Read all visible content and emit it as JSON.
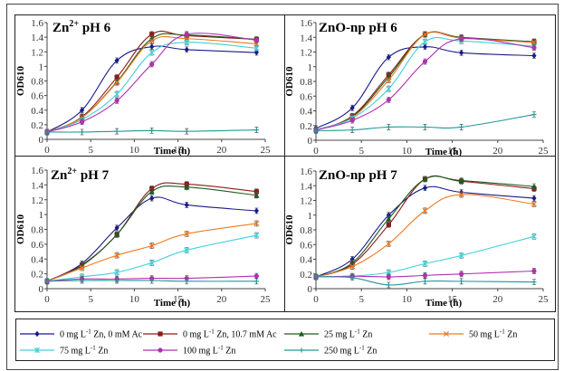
{
  "chart_data": {
    "type": "line",
    "legend": {
      "placement": "bottom",
      "entries": [
        {
          "label_html": "0 mg L<sup>-1</sup> Zn, 0 mM Ac",
          "label": "0 mg L-1 Zn, 0 mM Ac",
          "color": "#1a1a8c",
          "marker": "diamond"
        },
        {
          "label_html": "0 mg L<sup>-1</sup> Zn, 10.7 mM Ac",
          "label": "0 mg L-1 Zn, 10.7 mM Ac",
          "color": "#8b1a1a",
          "marker": "square"
        },
        {
          "label_html": "25 mg L<sup>-1</sup> Zn",
          "label": "25 mg L-1 Zn",
          "color": "#1e5c1e",
          "marker": "triangle"
        },
        {
          "label_html": "50 mg L<sup>-1</sup> Zn",
          "label": "50 mg L-1 Zn",
          "color": "#f07820",
          "marker": "x"
        },
        {
          "label_html": "75 mg L<sup>-1</sup> Zn",
          "label": "75 mg L-1 Zn",
          "color": "#40d0d8",
          "marker": "star"
        },
        {
          "label_html": "100 mg L<sup>-1</sup> Zn",
          "label": "100 mg L-1 Zn",
          "color": "#b030b0",
          "marker": "circle"
        },
        {
          "label_html": "250 mg L<sup>-1</sup> Zn",
          "label": "250 mg L-1 Zn",
          "color": "#209898",
          "marker": "plus"
        }
      ]
    },
    "panels": [
      {
        "title": "Zn²⁺ pH 6",
        "title_main": "Zn",
        "title_sup": "2+",
        "title_rest": " pH 6",
        "xlabel": "Time (h)",
        "ylabel": "OD610",
        "xlim": [
          0,
          25
        ],
        "ylim": [
          0,
          1.6
        ],
        "xticks": [
          0,
          5,
          10,
          15,
          20,
          25
        ],
        "yticks": [
          "0",
          "0.2",
          "0.4",
          "0.6",
          "0.8",
          "1",
          "1.2",
          "1.4",
          "1.6"
        ],
        "x": [
          0,
          4,
          8,
          12,
          16,
          24
        ],
        "series": [
          {
            "name": "0 mg L-1 Zn, 0 mM Ac",
            "values": [
              0.1,
              0.4,
              1.08,
              1.27,
              1.23,
              1.19
            ]
          },
          {
            "name": "0 mg L-1 Zn, 10.7 mM Ac",
            "values": [
              0.1,
              0.31,
              0.85,
              1.44,
              1.42,
              1.37
            ]
          },
          {
            "name": "25 mg L-1 Zn",
            "values": [
              0.1,
              0.3,
              0.79,
              1.38,
              1.43,
              1.37
            ]
          },
          {
            "name": "50 mg L-1 Zn",
            "values": [
              0.1,
              0.3,
              0.78,
              1.35,
              1.38,
              1.31
            ]
          },
          {
            "name": "75 mg L-1 Zn",
            "values": [
              0.1,
              0.27,
              0.62,
              1.19,
              1.33,
              1.25
            ]
          },
          {
            "name": "100 mg L-1 Zn",
            "values": [
              0.1,
              0.24,
              0.53,
              1.03,
              1.44,
              1.36
            ]
          },
          {
            "name": "250 mg L-1 Zn",
            "values": [
              0.1,
              0.1,
              0.11,
              0.12,
              0.11,
              0.13
            ]
          }
        ]
      },
      {
        "title": "ZnO-np pH 6",
        "title_main": "ZnO-np pH 6",
        "title_sup": "",
        "title_rest": "",
        "xlabel": "Time (h)",
        "ylabel": "OD610",
        "xlim": [
          0,
          25
        ],
        "ylim": [
          0,
          1.6
        ],
        "xticks": [
          0,
          5,
          10,
          15,
          20,
          25
        ],
        "yticks": [
          "0",
          "0.2",
          "0.4",
          "0.6",
          "0.8",
          "1",
          "1.2",
          "1.4",
          "1.6"
        ],
        "x": [
          0,
          4,
          8,
          12,
          16,
          24
        ],
        "series": [
          {
            "name": "0 mg L-1 Zn, 0 mM Ac",
            "values": [
              0.16,
              0.44,
              1.13,
              1.27,
              1.19,
              1.15
            ]
          },
          {
            "name": "0 mg L-1 Zn, 10.7 mM Ac",
            "values": [
              0.14,
              0.33,
              0.89,
              1.44,
              1.39,
              1.34
            ]
          },
          {
            "name": "25 mg L-1 Zn",
            "values": [
              0.14,
              0.32,
              0.86,
              1.44,
              1.4,
              1.34
            ]
          },
          {
            "name": "50 mg L-1 Zn",
            "values": [
              0.14,
              0.31,
              0.82,
              1.44,
              1.39,
              1.33
            ]
          },
          {
            "name": "75 mg L-1 Zn",
            "values": [
              0.14,
              0.3,
              0.7,
              1.34,
              1.35,
              1.28
            ]
          },
          {
            "name": "100 mg L-1 Zn",
            "values": [
              0.14,
              0.27,
              0.55,
              1.07,
              1.38,
              1.26
            ]
          },
          {
            "name": "250 mg L-1 Zn",
            "values": [
              0.13,
              0.14,
              0.18,
              0.18,
              0.18,
              0.35
            ]
          }
        ]
      },
      {
        "title": "Zn²⁺ pH 7",
        "title_main": "Zn",
        "title_sup": "2+",
        "title_rest": " pH 7",
        "xlabel": "Time (h)",
        "ylabel": "OD610",
        "xlim": [
          0,
          25
        ],
        "ylim": [
          0,
          1.6
        ],
        "xticks": [
          0,
          5,
          10,
          15,
          20,
          25
        ],
        "yticks": [
          "0",
          "0.2",
          "0.4",
          "0.6",
          "0.8",
          "1",
          "1.2",
          "1.4",
          "1.6"
        ],
        "x": [
          0,
          4,
          8,
          12,
          16,
          24
        ],
        "series": [
          {
            "name": "0 mg L-1 Zn, 0 mM Ac",
            "values": [
              0.1,
              0.34,
              0.82,
              1.22,
              1.13,
              1.05
            ]
          },
          {
            "name": "0 mg L-1 Zn, 10.7 mM Ac",
            "values": [
              0.1,
              0.32,
              0.73,
              1.35,
              1.41,
              1.31
            ]
          },
          {
            "name": "25 mg L-1 Zn",
            "values": [
              0.1,
              0.31,
              0.73,
              1.31,
              1.37,
              1.26
            ]
          },
          {
            "name": "50 mg L-1 Zn",
            "values": [
              0.1,
              0.28,
              0.45,
              0.58,
              0.74,
              0.88
            ]
          },
          {
            "name": "75 mg L-1 Zn",
            "values": [
              0.1,
              0.16,
              0.22,
              0.35,
              0.52,
              0.72
            ]
          },
          {
            "name": "100 mg L-1 Zn",
            "values": [
              0.1,
              0.13,
              0.13,
              0.14,
              0.14,
              0.17
            ]
          },
          {
            "name": "250 mg L-1 Zn",
            "values": [
              0.1,
              0.11,
              0.11,
              0.11,
              0.1,
              0.1
            ]
          }
        ]
      },
      {
        "title": "ZnO-np pH 7",
        "title_main": "ZnO-np pH 7",
        "title_sup": "",
        "title_rest": "",
        "xlabel": "Time (h)",
        "ylabel": "OD610",
        "xlim": [
          0,
          25
        ],
        "ylim": [
          0,
          1.6
        ],
        "xticks": [
          0,
          5,
          10,
          15,
          20,
          25
        ],
        "yticks": [
          "0",
          "0.2",
          "0.4",
          "0.6",
          "0.8",
          "1",
          "1.2",
          "1.4",
          "1.6"
        ],
        "x": [
          0,
          4,
          8,
          12,
          16,
          24
        ],
        "series": [
          {
            "name": "0 mg L-1 Zn, 0 mM Ac",
            "values": [
              0.16,
              0.4,
              1.0,
              1.37,
              1.31,
              1.23
            ]
          },
          {
            "name": "0 mg L-1 Zn, 10.7 mM Ac",
            "values": [
              0.16,
              0.33,
              0.87,
              1.49,
              1.46,
              1.36
            ]
          },
          {
            "name": "25 mg L-1 Zn",
            "values": [
              0.16,
              0.35,
              0.95,
              1.49,
              1.47,
              1.39
            ]
          },
          {
            "name": "50 mg L-1 Zn",
            "values": [
              0.16,
              0.3,
              0.61,
              1.06,
              1.28,
              1.15
            ]
          },
          {
            "name": "75 mg L-1 Zn",
            "values": [
              0.16,
              0.17,
              0.22,
              0.34,
              0.45,
              0.71
            ]
          },
          {
            "name": "100 mg L-1 Zn",
            "values": [
              0.16,
              0.17,
              0.16,
              0.18,
              0.2,
              0.24
            ]
          },
          {
            "name": "250 mg L-1 Zn",
            "values": [
              0.16,
              0.15,
              0.05,
              0.1,
              0.1,
              0.09
            ]
          }
        ]
      }
    ]
  }
}
